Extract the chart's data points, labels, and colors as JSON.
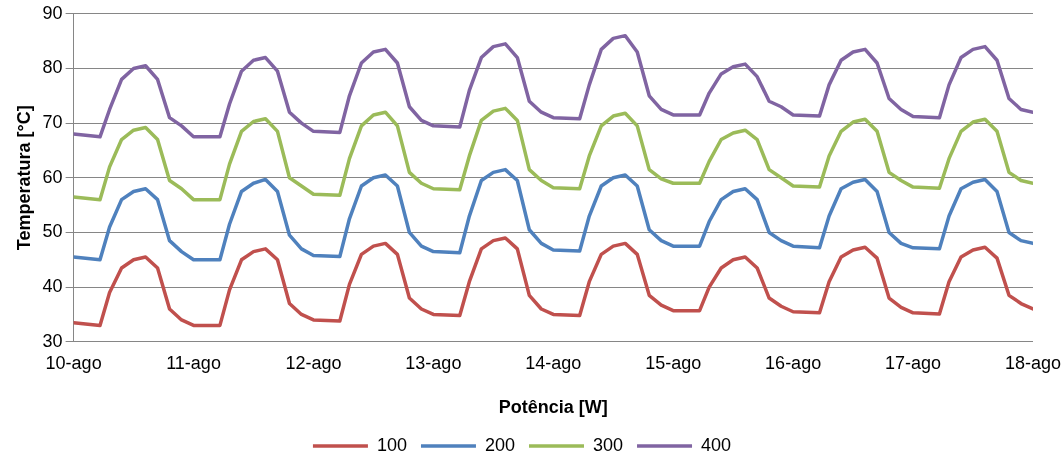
{
  "chart_data": {
    "type": "line",
    "xlabel": "Potência [W]",
    "ylabel": "Temperatura [°C]",
    "x": [
      10,
      10.22,
      10.3,
      10.4,
      10.5,
      10.6,
      10.7,
      10.8,
      10.9,
      11,
      11.22,
      11.3,
      11.4,
      11.5,
      11.6,
      11.7,
      11.8,
      11.9,
      12,
      12.22,
      12.3,
      12.4,
      12.5,
      12.6,
      12.7,
      12.8,
      12.9,
      13,
      13.22,
      13.3,
      13.4,
      13.5,
      13.6,
      13.7,
      13.8,
      13.9,
      14,
      14.22,
      14.3,
      14.4,
      14.5,
      14.6,
      14.7,
      14.8,
      14.9,
      15,
      15.22,
      15.3,
      15.4,
      15.5,
      15.6,
      15.7,
      15.8,
      15.9,
      16,
      16.22,
      16.3,
      16.4,
      16.5,
      16.6,
      16.7,
      16.8,
      16.9,
      17,
      17.22,
      17.3,
      17.4,
      17.5,
      17.6,
      17.7,
      17.8,
      17.9,
      18
    ],
    "series": [
      {
        "name": "100",
        "color": "#c0504d",
        "values": [
          33.5,
          33,
          39,
          43.5,
          45,
          45.5,
          43.5,
          36,
          34,
          33,
          33,
          39.5,
          45,
          46.5,
          47,
          45,
          37,
          35,
          34,
          33.8,
          40.5,
          46,
          47.5,
          48,
          46,
          38,
          36,
          35,
          34.8,
          41,
          47,
          48.5,
          49,
          47,
          38.5,
          36,
          35,
          34.8,
          41,
          46,
          47.5,
          48,
          46,
          38.5,
          36.7,
          35.7,
          35.7,
          40,
          43.5,
          45,
          45.5,
          43.5,
          38,
          36.5,
          35.5,
          35.3,
          41,
          45.5,
          46.8,
          47.3,
          45.3,
          38,
          36.3,
          35.3,
          35.1,
          41,
          45.5,
          46.8,
          47.3,
          45.3,
          38.5,
          37,
          36
        ]
      },
      {
        "name": "200",
        "color": "#4f81bd",
        "values": [
          45.5,
          45,
          51,
          56,
          57.5,
          58,
          56,
          48.5,
          46.5,
          45,
          45,
          51.5,
          57.5,
          59,
          59.7,
          57.5,
          49.5,
          47,
          45.8,
          45.6,
          52.5,
          58.5,
          60,
          60.5,
          58.5,
          50,
          47.5,
          46.5,
          46.3,
          53,
          59.5,
          61,
          61.5,
          59.5,
          50.5,
          48,
          46.8,
          46.6,
          53,
          58.5,
          60,
          60.5,
          58.5,
          50.5,
          48.5,
          47.5,
          47.5,
          52,
          56,
          57.5,
          58,
          56,
          50,
          48.5,
          47.5,
          47.2,
          53,
          58,
          59.2,
          59.7,
          57.5,
          50,
          48,
          47.2,
          47,
          53,
          58,
          59.2,
          59.7,
          57.5,
          50,
          48.5,
          48
        ]
      },
      {
        "name": "300",
        "color": "#9bbb59",
        "values": [
          56.5,
          56,
          62,
          67,
          68.7,
          69.2,
          67,
          59.5,
          58,
          56,
          56,
          62.5,
          68.5,
          70.3,
          70.8,
          68.5,
          60,
          58.5,
          57,
          56.8,
          63.5,
          69.5,
          71.5,
          72,
          69.5,
          61,
          59,
          58,
          57.8,
          64,
          70.5,
          72.2,
          72.7,
          70.5,
          61.5,
          59.5,
          58.2,
          58,
          64,
          69.5,
          71.3,
          71.8,
          69.5,
          61.5,
          59.8,
          59,
          59,
          63,
          67,
          68.2,
          68.7,
          67,
          61.5,
          60,
          58.5,
          58.3,
          64,
          68.5,
          70.2,
          70.7,
          68.5,
          61,
          59.5,
          58.3,
          58.1,
          63.5,
          68.5,
          70.2,
          70.7,
          68.5,
          61,
          59.5,
          59
        ]
      },
      {
        "name": "400",
        "color": "#8064a2",
        "values": [
          68,
          67.5,
          72.5,
          78,
          80,
          80.5,
          78,
          71,
          69.5,
          67.5,
          67.5,
          73.5,
          79.5,
          81.5,
          82,
          79.5,
          72,
          70,
          68.5,
          68.3,
          75,
          81,
          83,
          83.5,
          81,
          73,
          70.5,
          69.5,
          69.3,
          76,
          82,
          84,
          84.5,
          82,
          74,
          72,
          71,
          70.8,
          77,
          83.5,
          85.5,
          86,
          83,
          75,
          72.5,
          71.5,
          71.5,
          75.5,
          79,
          80.3,
          80.8,
          78.5,
          74,
          73,
          71.5,
          71.3,
          77,
          81.5,
          83,
          83.5,
          81,
          74.5,
          72.5,
          71.2,
          71,
          77,
          82,
          83.5,
          84,
          81.5,
          74.5,
          72.5,
          72
        ]
      }
    ],
    "xlim": [
      10,
      18
    ],
    "xticks": [
      {
        "value": 10,
        "label": "10-ago"
      },
      {
        "value": 11,
        "label": "11-ago"
      },
      {
        "value": 12,
        "label": "12-ago"
      },
      {
        "value": 13,
        "label": "13-ago"
      },
      {
        "value": 14,
        "label": "14-ago"
      },
      {
        "value": 15,
        "label": "15-ago"
      },
      {
        "value": 16,
        "label": "16-ago"
      },
      {
        "value": 17,
        "label": "17-ago"
      },
      {
        "value": 18,
        "label": "18-ago"
      }
    ],
    "ylim": [
      30,
      90
    ],
    "yticks": [
      30,
      40,
      50,
      60,
      70,
      80,
      90
    ],
    "grid": "y",
    "legend": "bottom",
    "marker": "none",
    "line_style": "solid"
  }
}
